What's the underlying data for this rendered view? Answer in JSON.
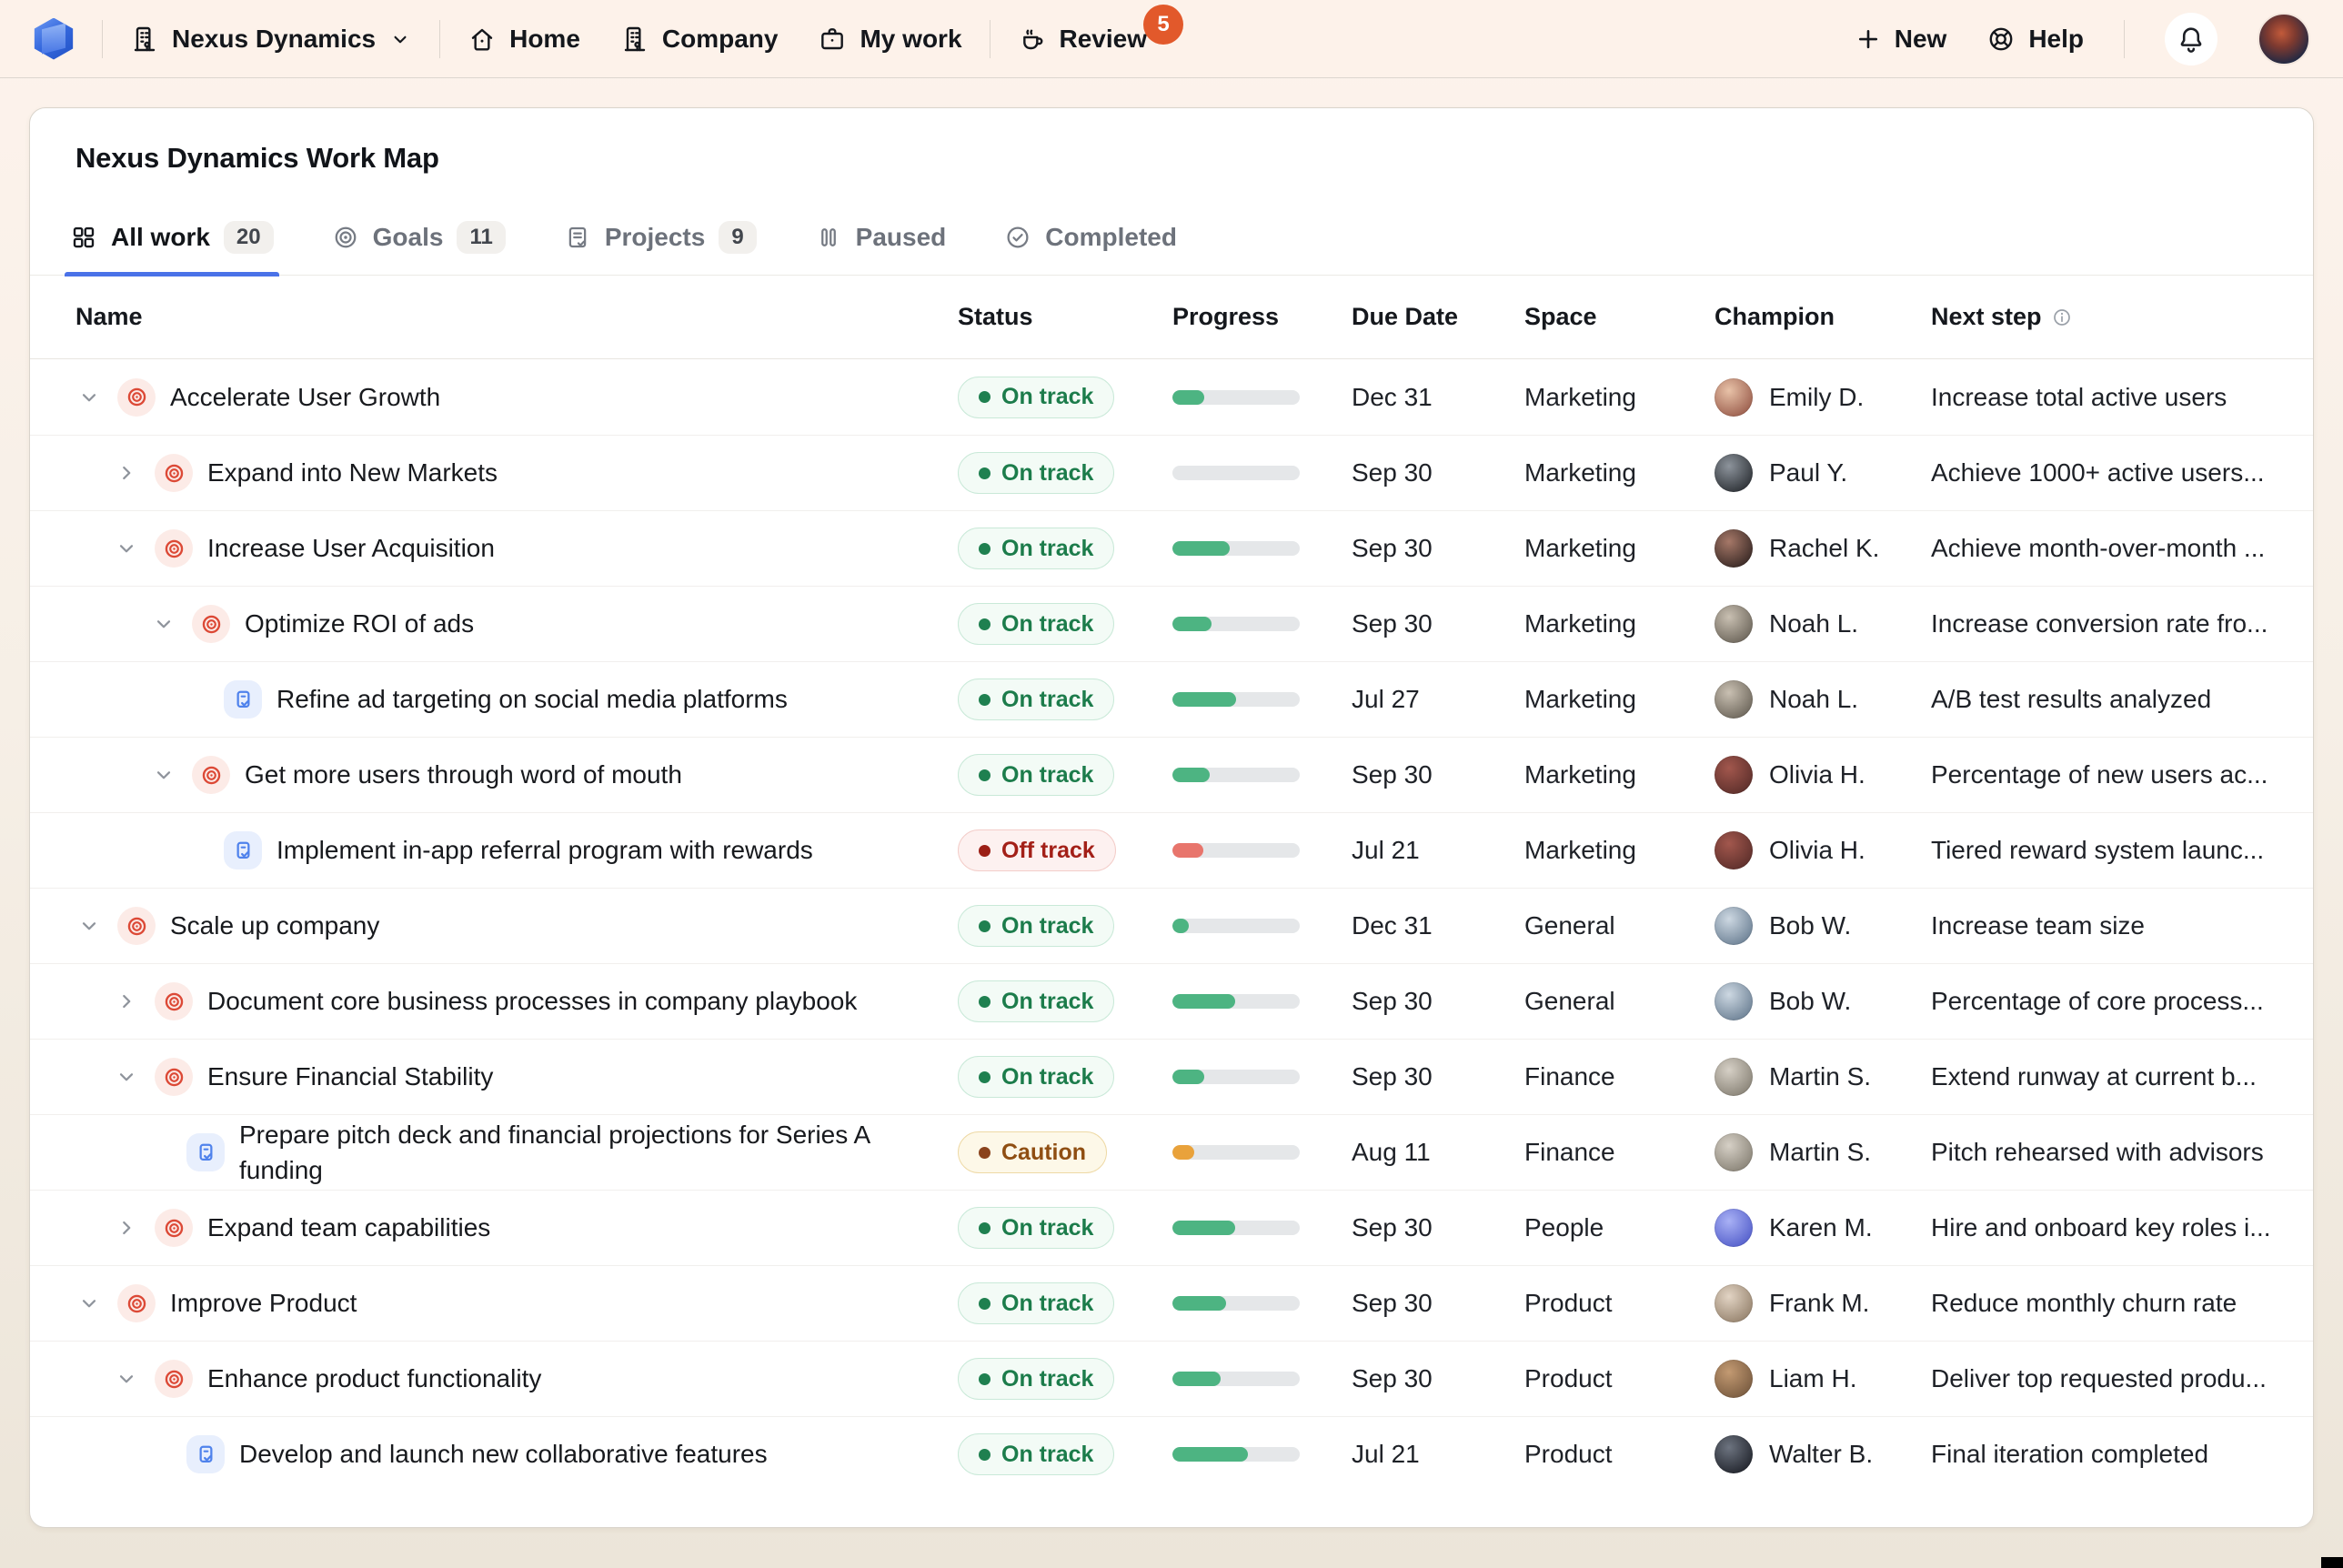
{
  "topbar": {
    "workspace": "Nexus Dynamics",
    "nav": [
      {
        "label": "Home",
        "icon": "home-icon"
      },
      {
        "label": "Company",
        "icon": "building-icon"
      },
      {
        "label": "My work",
        "icon": "briefcase-icon"
      }
    ],
    "review": {
      "label": "Review",
      "badge": "5",
      "icon": "coffee-icon"
    },
    "new_label": "New",
    "help_label": "Help"
  },
  "page": {
    "title": "Nexus Dynamics Work Map"
  },
  "tabs": [
    {
      "label": "All work",
      "count": "20",
      "icon": "grid-icon",
      "active": true
    },
    {
      "label": "Goals",
      "count": "11",
      "icon": "target-icon",
      "active": false
    },
    {
      "label": "Projects",
      "count": "9",
      "icon": "clipboard-icon",
      "active": false
    },
    {
      "label": "Paused",
      "count": null,
      "icon": "paused-icon",
      "active": false
    },
    {
      "label": "Completed",
      "count": null,
      "icon": "completed-icon",
      "active": false
    }
  ],
  "table": {
    "columns": {
      "name": "Name",
      "status": "Status",
      "progress": "Progress",
      "due": "Due Date",
      "space": "Space",
      "champion": "Champion",
      "next": "Next step"
    },
    "rows": [
      {
        "name": "Accelerate User Growth",
        "type": "goal",
        "level": 0,
        "chevron": "down",
        "status": "On track",
        "variant": "on",
        "progress": 25,
        "due": "Dec 31",
        "space": "Marketing",
        "champion": "Emily D.",
        "avatar_colors": [
          "#e8c2a8",
          "#9c5f4e"
        ],
        "next": "Increase total active users"
      },
      {
        "name": "Expand into New Markets",
        "type": "goal",
        "level": 1,
        "chevron": "right",
        "status": "On track",
        "variant": "on",
        "progress": 0,
        "due": "Sep 30",
        "space": "Marketing",
        "champion": "Paul Y.",
        "avatar_colors": [
          "#8d949c",
          "#2f3338"
        ],
        "next": "Achieve 1000+ active users..."
      },
      {
        "name": "Increase User Acquisition",
        "type": "goal",
        "level": 1,
        "chevron": "down",
        "status": "On track",
        "variant": "on",
        "progress": 45,
        "due": "Sep 30",
        "space": "Marketing",
        "champion": "Rachel K.",
        "avatar_colors": [
          "#a67868",
          "#3a2a26"
        ],
        "next": "Achieve month-over-month ..."
      },
      {
        "name": "Optimize ROI of ads",
        "type": "goal",
        "level": 2,
        "chevron": "down",
        "status": "On track",
        "variant": "on",
        "progress": 31,
        "due": "Sep 30",
        "space": "Marketing",
        "champion": "Noah L.",
        "avatar_colors": [
          "#c9c0b2",
          "#6e675c"
        ],
        "next": "Increase conversion rate fro..."
      },
      {
        "name": "Refine ad targeting on social media platforms",
        "type": "project",
        "level": 3,
        "chevron": null,
        "status": "On track",
        "variant": "on",
        "progress": 50,
        "due": "Jul 27",
        "space": "Marketing",
        "champion": "Noah L.",
        "avatar_colors": [
          "#c9c0b2",
          "#6e675c"
        ],
        "next": "A/B test results analyzed"
      },
      {
        "name": "Get more users through word of mouth",
        "type": "goal",
        "level": 2,
        "chevron": "down",
        "status": "On track",
        "variant": "on",
        "progress": 29,
        "due": "Sep 30",
        "space": "Marketing",
        "champion": "Olivia H.",
        "avatar_colors": [
          "#a2574d",
          "#5e302c"
        ],
        "next": "Percentage of new users ac..."
      },
      {
        "name": "Implement in-app referral program with rewards",
        "type": "project",
        "level": 3,
        "chevron": null,
        "status": "Off track",
        "variant": "off",
        "progress": 24,
        "due": "Jul 21",
        "space": "Marketing",
        "champion": "Olivia H.",
        "avatar_colors": [
          "#a2574d",
          "#5e302c"
        ],
        "next": "Tiered reward system launc..."
      },
      {
        "name": "Scale up company",
        "type": "goal",
        "level": 0,
        "chevron": "down",
        "status": "On track",
        "variant": "on",
        "progress": 13,
        "due": "Dec 31",
        "space": "General",
        "champion": "Bob W.",
        "avatar_colors": [
          "#cdd8e2",
          "#6e8296"
        ],
        "next": "Increase team size"
      },
      {
        "name": "Document core business processes in company playbook",
        "type": "goal",
        "level": 1,
        "chevron": "right",
        "status": "On track",
        "variant": "on",
        "progress": 49,
        "due": "Sep 30",
        "space": "General",
        "champion": "Bob W.",
        "avatar_colors": [
          "#cdd8e2",
          "#6e8296"
        ],
        "next": "Percentage of core process..."
      },
      {
        "name": "Ensure Financial Stability",
        "type": "goal",
        "level": 1,
        "chevron": "down",
        "status": "On track",
        "variant": "on",
        "progress": 25,
        "due": "Sep 30",
        "space": "Finance",
        "champion": "Martin S.",
        "avatar_colors": [
          "#d6d0c6",
          "#8a8478"
        ],
        "next": "Extend runway at current b..."
      },
      {
        "name": "Prepare pitch deck and financial projections for Series A funding",
        "type": "project",
        "level": 2,
        "chevron": null,
        "status": "Caution",
        "variant": "caution",
        "progress": 17,
        "due": "Aug 11",
        "space": "Finance",
        "champion": "Martin S.",
        "avatar_colors": [
          "#d6d0c6",
          "#8a8478"
        ],
        "next": "Pitch rehearsed with advisors"
      },
      {
        "name": "Expand team capabilities",
        "type": "goal",
        "level": 1,
        "chevron": "right",
        "status": "On track",
        "variant": "on",
        "progress": 49,
        "due": "Sep 30",
        "space": "People",
        "champion": "Karen M.",
        "avatar_colors": [
          "#a9b1f5",
          "#5560cc"
        ],
        "next": "Hire and onboard key roles i..."
      },
      {
        "name": "Improve Product",
        "type": "goal",
        "level": 0,
        "chevron": "down",
        "status": "On track",
        "variant": "on",
        "progress": 42,
        "due": "Sep 30",
        "space": "Product",
        "champion": "Frank M.",
        "avatar_colors": [
          "#e2d4c4",
          "#97846f"
        ],
        "next": "Reduce monthly churn rate"
      },
      {
        "name": "Enhance product functionality",
        "type": "goal",
        "level": 1,
        "chevron": "down",
        "status": "On track",
        "variant": "on",
        "progress": 38,
        "due": "Sep 30",
        "space": "Product",
        "champion": "Liam H.",
        "avatar_colors": [
          "#c39a72",
          "#7a5c41"
        ],
        "next": "Deliver top requested produ..."
      },
      {
        "name": "Develop and launch new collaborative features",
        "type": "project",
        "level": 2,
        "chevron": null,
        "status": "On track",
        "variant": "on",
        "progress": 59,
        "due": "Jul 21",
        "space": "Product",
        "champion": "Walter B.",
        "avatar_colors": [
          "#6d7480",
          "#23262e"
        ],
        "next": "Final iteration completed"
      }
    ]
  },
  "colors": {
    "accent_blue": "#4a72e8",
    "badge_orange": "#e2592b",
    "goal_icon_red": "#dc4936",
    "project_icon_blue": "#4f82ec",
    "status_on_text": "#1c7c4b",
    "status_off_text": "#a32018",
    "status_caution_text": "#8f4e12",
    "progress_green": "#4db482",
    "progress_red": "#e8756c",
    "progress_amber": "#e9a23b"
  }
}
